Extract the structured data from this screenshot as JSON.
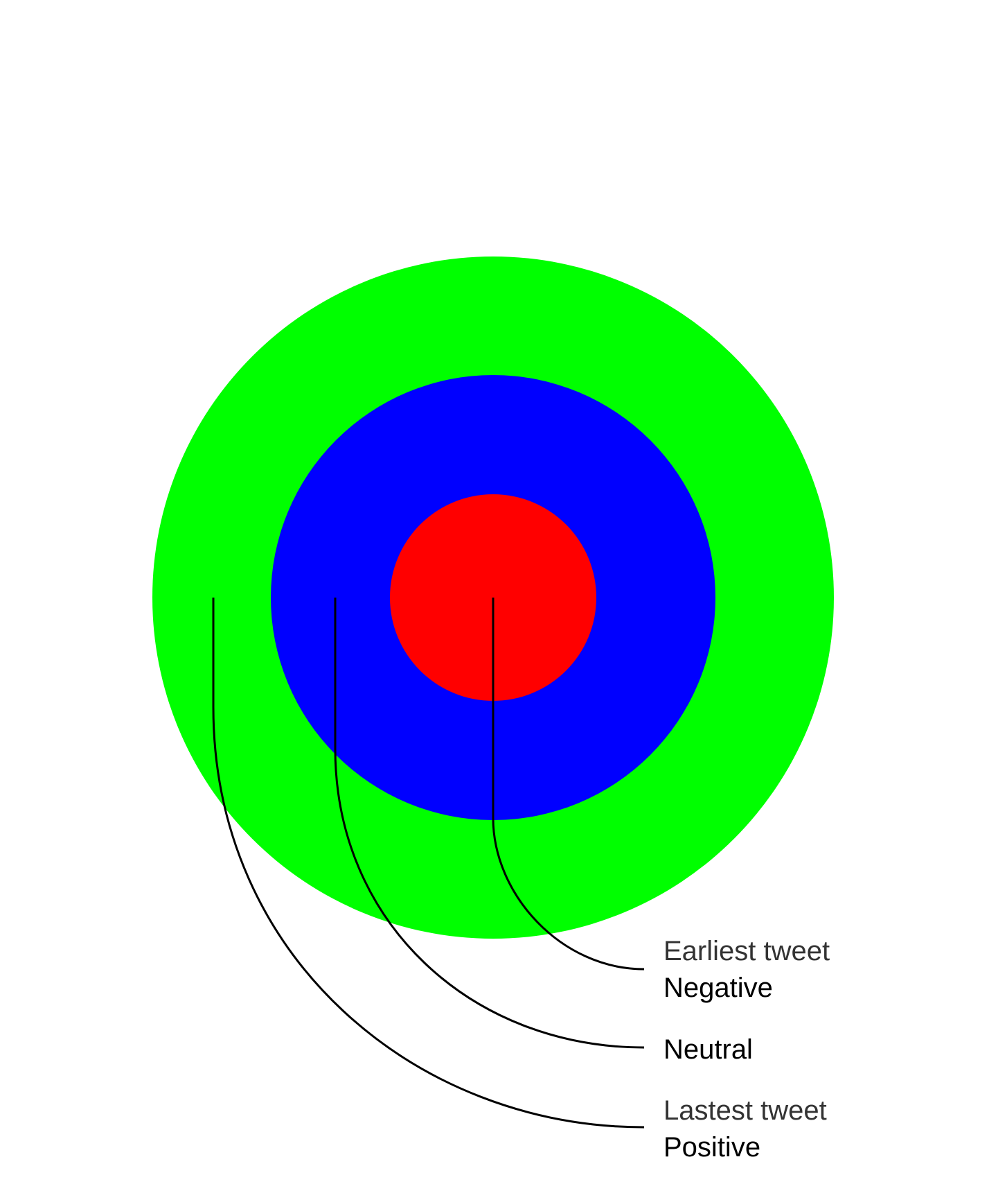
{
  "colors": {
    "outer_ring": "#00ff00",
    "middle_ring": "#0000ff",
    "inner_ring": "#ff0000",
    "connector": "#000000",
    "background": "#ffffff"
  },
  "legend": {
    "negative": {
      "caption": "Earliest tweet",
      "label": "Negative"
    },
    "neutral": {
      "label": "Neutral"
    },
    "positive": {
      "caption": "Lastest tweet",
      "label": "Positive"
    }
  }
}
